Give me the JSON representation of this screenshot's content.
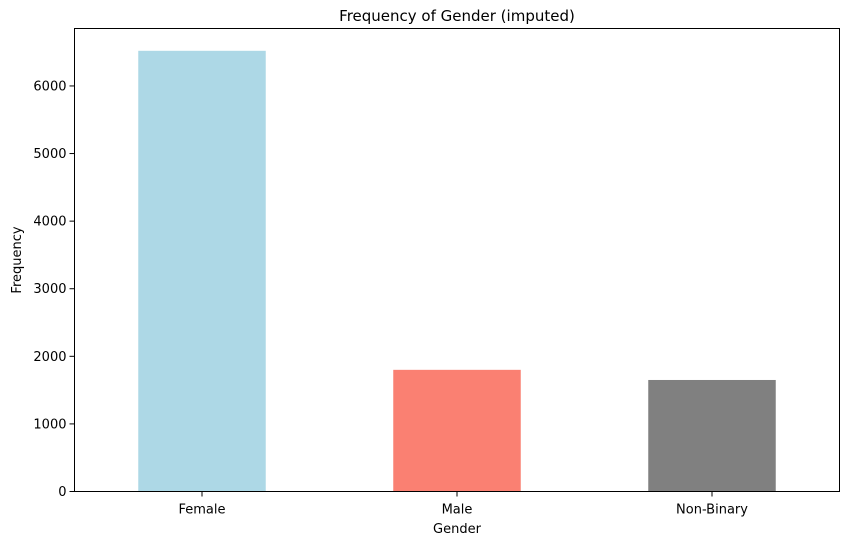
{
  "chart_data": {
    "type": "bar",
    "title": "Frequency of Gender (imputed)",
    "xlabel": "Gender",
    "ylabel": "Frequency",
    "categories": [
      "Female",
      "Male",
      "Non-Binary"
    ],
    "values": [
      6520,
      1800,
      1650
    ],
    "colors": [
      "#add8e6",
      "#fa8072",
      "#808080"
    ],
    "ylim": [
      0,
      6850
    ],
    "yticks": [
      0,
      1000,
      2000,
      3000,
      4000,
      5000,
      6000
    ],
    "grid": false,
    "legend": "none"
  }
}
